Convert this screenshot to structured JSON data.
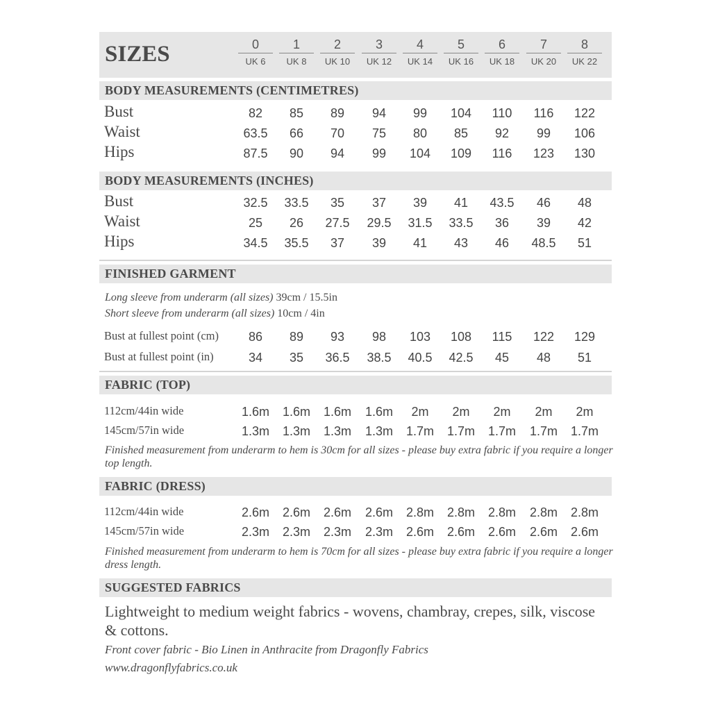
{
  "sizes": {
    "title": "SIZES",
    "columns": [
      {
        "size": "0",
        "uk": "UK 6"
      },
      {
        "size": "1",
        "uk": "UK 8"
      },
      {
        "size": "2",
        "uk": "UK 10"
      },
      {
        "size": "3",
        "uk": "UK 12"
      },
      {
        "size": "4",
        "uk": "UK 14"
      },
      {
        "size": "5",
        "uk": "UK 16"
      },
      {
        "size": "6",
        "uk": "UK 18"
      },
      {
        "size": "7",
        "uk": "UK 20"
      },
      {
        "size": "8",
        "uk": "UK 22"
      }
    ]
  },
  "body_cm": {
    "heading": "BODY MEASUREMENTS (CENTIMETRES)",
    "rows": [
      {
        "label": "Bust",
        "values": [
          "82",
          "85",
          "89",
          "94",
          "99",
          "104",
          "110",
          "116",
          "122"
        ]
      },
      {
        "label": "Waist",
        "values": [
          "63.5",
          "66",
          "70",
          "75",
          "80",
          "85",
          "92",
          "99",
          "106"
        ]
      },
      {
        "label": "Hips",
        "values": [
          "87.5",
          "90",
          "94",
          "99",
          "104",
          "109",
          "116",
          "123",
          "130"
        ]
      }
    ]
  },
  "body_in": {
    "heading": "BODY MEASUREMENTS (INCHES)",
    "rows": [
      {
        "label": "Bust",
        "values": [
          "32.5",
          "33.5",
          "35",
          "37",
          "39",
          "41",
          "43.5",
          "46",
          "48"
        ]
      },
      {
        "label": "Waist",
        "values": [
          "25",
          "26",
          "27.5",
          "29.5",
          "31.5",
          "33.5",
          "36",
          "39",
          "42"
        ]
      },
      {
        "label": "Hips",
        "values": [
          "34.5",
          "35.5",
          "37",
          "39",
          "41",
          "43",
          "46",
          "48.5",
          "51"
        ]
      }
    ]
  },
  "finished": {
    "heading": "FINISHED GARMENT",
    "notes": [
      {
        "label": "Long sleeve from underarm (all sizes)",
        "value": "39cm / 15.5in"
      },
      {
        "label": "Short sleeve from underarm (all sizes)",
        "value": "10cm / 4in"
      }
    ],
    "rows": [
      {
        "label": "Bust at fullest point (cm)",
        "values": [
          "86",
          "89",
          "93",
          "98",
          "103",
          "108",
          "115",
          "122",
          "129"
        ]
      },
      {
        "label": "Bust at fullest point (in)",
        "values": [
          "34",
          "35",
          "36.5",
          "38.5",
          "40.5",
          "42.5",
          "45",
          "48",
          "51"
        ]
      }
    ]
  },
  "fabric_top": {
    "heading": "FABRIC (TOP)",
    "rows": [
      {
        "label": "112cm/44in wide",
        "values": [
          "1.6m",
          "1.6m",
          "1.6m",
          "1.6m",
          "2m",
          "2m",
          "2m",
          "2m",
          "2m"
        ]
      },
      {
        "label": "145cm/57in wide",
        "values": [
          "1.3m",
          "1.3m",
          "1.3m",
          "1.3m",
          "1.7m",
          "1.7m",
          "1.7m",
          "1.7m",
          "1.7m"
        ]
      }
    ],
    "note": "Finished measurement from underarm to hem is 30cm for all sizes - please buy extra fabric if you require a longer top length."
  },
  "fabric_dress": {
    "heading": "FABRIC (DRESS)",
    "rows": [
      {
        "label": "112cm/44in wide",
        "values": [
          "2.6m",
          "2.6m",
          "2.6m",
          "2.6m",
          "2.8m",
          "2.8m",
          "2.8m",
          "2.8m",
          "2.8m"
        ]
      },
      {
        "label": "145cm/57in wide",
        "values": [
          "2.3m",
          "2.3m",
          "2.3m",
          "2.3m",
          "2.6m",
          "2.6m",
          "2.6m",
          "2.6m",
          "2.6m"
        ]
      }
    ],
    "note": "Finished measurement from underarm to hem is 70cm for all sizes - please buy extra fabric if you require a longer dress length."
  },
  "suggested": {
    "heading": "SUGGESTED FABRICS",
    "text": "Lightweight to medium weight fabrics - wovens, chambray, crepes, silk, viscose & cottons.",
    "cover": "Front cover fabric  - Bio Linen in Anthracite from Dragonfly Fabrics",
    "url": "www.dragonflyfabrics.co.uk"
  },
  "colors": {
    "band": "#e6e6e6",
    "text": "#4a4a4a"
  }
}
